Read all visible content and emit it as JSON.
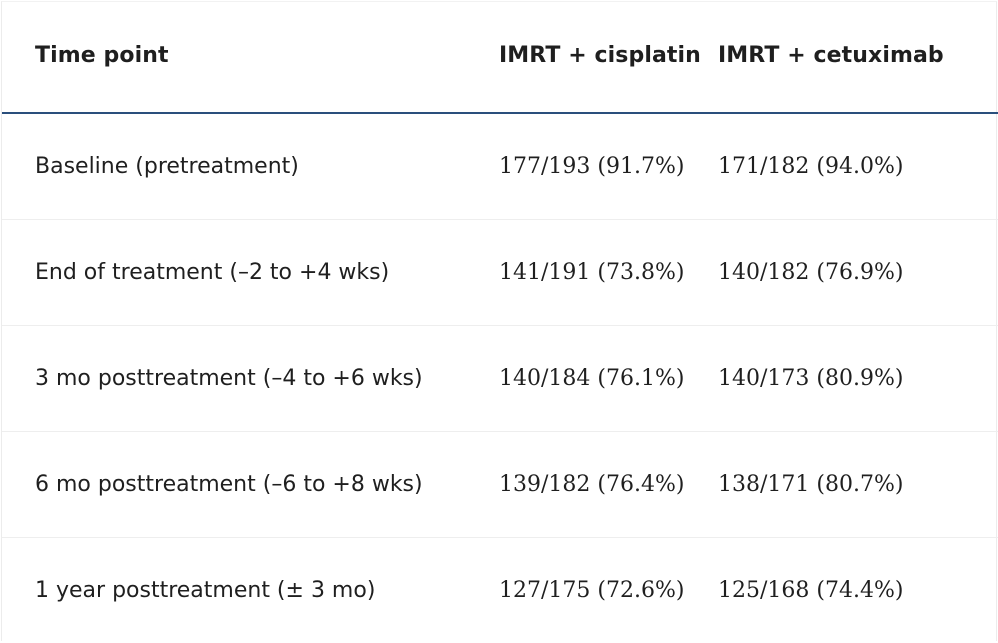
{
  "table": {
    "headers": [
      "Time point",
      "IMRT + cisplatin",
      "IMRT + cetuximab"
    ],
    "rows": [
      {
        "time_point": "Baseline (pretreatment)",
        "cisplatin": "177/193 (91.7%)",
        "cetuximab": "171/182 (94.0%)"
      },
      {
        "time_point": "End of treatment (–2 to +4 wks)",
        "cisplatin": "141/191 (73.8%)",
        "cetuximab": "140/182 (76.9%)"
      },
      {
        "time_point": "3 mo posttreatment (–4 to +6 wks)",
        "cisplatin": "140/184 (76.1%)",
        "cetuximab": "140/173 (80.9%)"
      },
      {
        "time_point": "6 mo posttreatment (–6 to +8 wks)",
        "cisplatin": "139/182 (76.4%)",
        "cetuximab": "138/171 (80.7%)"
      },
      {
        "time_point": "1 year posttreatment (± 3 mo)",
        "cisplatin": "127/175 (72.6%)",
        "cetuximab": "125/168 (74.4%)"
      }
    ]
  }
}
